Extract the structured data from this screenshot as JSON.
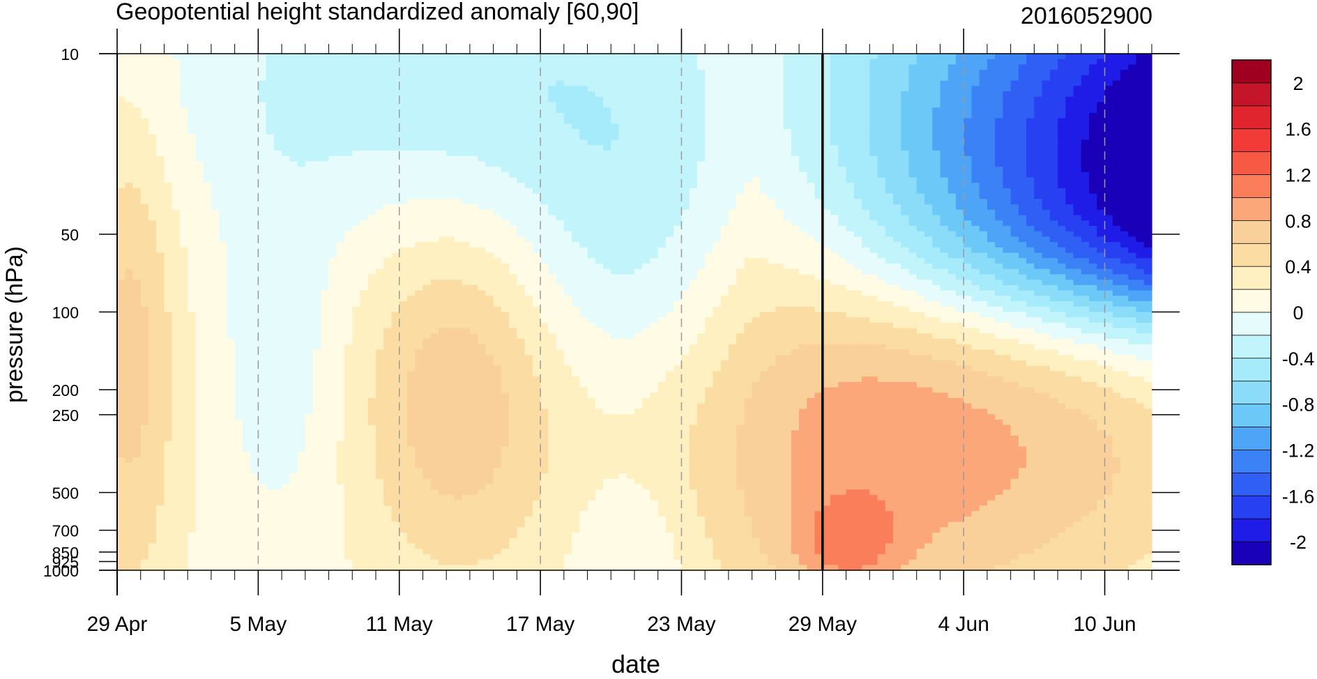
{
  "figure": {
    "title_left": "Geopotential height standardized anomaly [60,90]",
    "title_right": "2016052900"
  },
  "chart_data": {
    "type": "heatmap",
    "subtype": "filled-contour (time-pressure cross section)",
    "title": "Geopotential height standardized anomaly [60,90]",
    "subtitle": "2016052900",
    "xlabel": "date",
    "ylabel": "pressure (hPa)",
    "x_ticks": [
      "29 Apr",
      "5 May",
      "11 May",
      "17 May",
      "23 May",
      "29 May",
      "4 Jun",
      "10 Jun"
    ],
    "x_range": [
      "2016-04-29",
      "2016-06-12"
    ],
    "y_ticks": [
      10,
      50,
      100,
      200,
      250,
      500,
      700,
      850,
      925,
      1000
    ],
    "y_tick_labels": [
      "10",
      "50",
      "100",
      "200",
      "250",
      "500",
      "700",
      "850",
      "925",
      "1000"
    ],
    "y_scale": "log (reversed)",
    "ylim": [
      1000,
      10
    ],
    "vertical_marker": "2016-05-29",
    "grid": "dashed vertical lines at x ticks",
    "colorbar": {
      "levels": [
        -2.2,
        -2.0,
        -1.8,
        -1.6,
        -1.4,
        -1.2,
        -1.0,
        -0.8,
        -0.6,
        -0.4,
        -0.2,
        0.0,
        0.2,
        0.4,
        0.6,
        0.8,
        1.0,
        1.2,
        1.4,
        1.6,
        1.8,
        2.0,
        2.2
      ],
      "labels": [
        "2",
        "1.6",
        "1.2",
        "0.8",
        "0.4",
        "0",
        "-0.4",
        "-0.8",
        "-1.2",
        "-1.6",
        "-2"
      ],
      "label_values": [
        2.0,
        1.6,
        1.2,
        0.8,
        0.4,
        0.0,
        -0.4,
        -0.8,
        -1.2,
        -1.6,
        -2.0
      ],
      "colors": [
        "#1a00b8",
        "#1e1ce6",
        "#2640f2",
        "#2f5ff4",
        "#3b82f6",
        "#4ea5f7",
        "#6cc9f7",
        "#8adcf9",
        "#a6ebfb",
        "#c2f5fb",
        "#e6fbfc",
        "#fffbe4",
        "#fef0c0",
        "#fbdca3",
        "#f9d09a",
        "#fba77a",
        "#fb7e5a",
        "#f75a44",
        "#f23a36",
        "#e0252e",
        "#c5152a",
        "#a00020"
      ]
    },
    "annotations": [
      "Strong negative anomaly (below -2) upper-right stratosphere after 4 Jun",
      "Positive anomalies (0.2 to 1.0) in troposphere around 11-17 May and late May - early June"
    ]
  }
}
